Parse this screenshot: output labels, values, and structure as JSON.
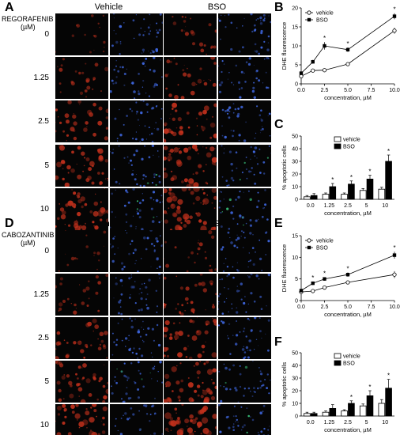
{
  "panels": {
    "A": "A",
    "B": "B",
    "C": "C",
    "D": "D",
    "E": "E",
    "F": "F"
  },
  "micro_top": {
    "drug": "REGORAFENIB",
    "unit": "(µM)",
    "col_vehicle": "Vehicle",
    "col_bso": "BSO",
    "rows": [
      "0",
      "1.25",
      "2.5",
      "5",
      "10"
    ]
  },
  "micro_bottom": {
    "drug": "CABOZANTINIB",
    "unit": "(µM)",
    "col_vehicle": "Vehicle",
    "col_bso": "BSO",
    "rows": [
      "0",
      "1.25",
      "2.5",
      "5",
      "10"
    ]
  },
  "colors": {
    "red_channel": "#c0301c",
    "blue_channel": "#3f67e0",
    "green_channel": "#39c079"
  },
  "chart_data": [
    {
      "id": "B",
      "type": "line",
      "ylabel": "DHE fluorescence",
      "xlabel": "concentration, µM",
      "x": [
        0,
        1.25,
        2.5,
        5,
        10
      ],
      "xticks": [
        "0.0",
        "2.5",
        "5.0",
        "7.5",
        "10.0"
      ],
      "xlim": [
        0,
        10
      ],
      "ylim": [
        0,
        20
      ],
      "yticks": [
        "0",
        "5",
        "10",
        "15",
        "20"
      ],
      "legend_position": "top-left",
      "series": [
        {
          "name": "vehicle",
          "marker": "open-circle",
          "values": [
            2.0,
            3.5,
            3.6,
            5.2,
            14.0
          ],
          "errors": [
            0.3,
            0.3,
            0.3,
            0.4,
            0.8
          ]
        },
        {
          "name": "BSO",
          "marker": "filled-square",
          "values": [
            2.8,
            5.8,
            10.0,
            9.0,
            17.8
          ],
          "errors": [
            0.4,
            0.5,
            1.0,
            0.6,
            0.8
          ]
        }
      ],
      "significance": [
        "",
        "",
        "*",
        "*",
        "*"
      ]
    },
    {
      "id": "C",
      "type": "bar",
      "ylabel": "% apoptotic cells",
      "xlabel": "concentration, µM",
      "categories": [
        "0.0",
        "1.25",
        "2.5",
        "5",
        "10"
      ],
      "ylim": [
        0,
        50
      ],
      "yticks": [
        "0",
        "10",
        "20",
        "30",
        "40",
        "50"
      ],
      "legend_position": "top-left",
      "series": [
        {
          "name": "vehicle",
          "fill": "open",
          "values": [
            2,
            4,
            4,
            7,
            8
          ],
          "errors": [
            1,
            1,
            1,
            1.5,
            1.5
          ]
        },
        {
          "name": "BSO",
          "fill": "black",
          "values": [
            3,
            10,
            12,
            16,
            30
          ],
          "errors": [
            1.5,
            2.5,
            2.5,
            3,
            5
          ]
        }
      ],
      "significance": [
        "",
        "*",
        "*",
        "*",
        "*"
      ]
    },
    {
      "id": "E",
      "type": "line",
      "ylabel": "DHE fluorescence",
      "xlabel": "concentration, µM",
      "x": [
        0,
        1.25,
        2.5,
        5,
        10
      ],
      "xticks": [
        "0.0",
        "2.5",
        "5.0",
        "7.5",
        "10.0"
      ],
      "xlim": [
        0,
        10
      ],
      "ylim": [
        0,
        15
      ],
      "yticks": [
        "0",
        "5",
        "10",
        "15"
      ],
      "legend_position": "top-left",
      "series": [
        {
          "name": "vehicle",
          "marker": "open-circle",
          "values": [
            2.0,
            2.2,
            3.0,
            4.2,
            6.0
          ],
          "errors": [
            0.3,
            0.3,
            0.3,
            0.4,
            0.8
          ]
        },
        {
          "name": "BSO",
          "marker": "filled-square",
          "values": [
            2.3,
            4.0,
            5.0,
            6.0,
            10.5
          ],
          "errors": [
            0.3,
            0.4,
            0.4,
            0.5,
            0.8
          ]
        }
      ],
      "significance": [
        "",
        "*",
        "*",
        "*",
        "*"
      ]
    },
    {
      "id": "F",
      "type": "bar",
      "ylabel": "% apoptotic cells",
      "xlabel": "concentration, µM",
      "categories": [
        "0.0",
        "1.25",
        "2.5",
        "5",
        "10"
      ],
      "ylim": [
        0,
        50
      ],
      "yticks": [
        "0",
        "10",
        "20",
        "30",
        "40",
        "50"
      ],
      "legend_position": "top-left",
      "series": [
        {
          "name": "vehicle",
          "fill": "open",
          "values": [
            2,
            3,
            4,
            8,
            10
          ],
          "errors": [
            1,
            1,
            1,
            1.5,
            3
          ]
        },
        {
          "name": "BSO",
          "fill": "black",
          "values": [
            2,
            6,
            10,
            16,
            22
          ],
          "errors": [
            1,
            3,
            2,
            4,
            7
          ]
        }
      ],
      "significance": [
        "",
        "",
        "*",
        "*",
        "*"
      ]
    }
  ]
}
